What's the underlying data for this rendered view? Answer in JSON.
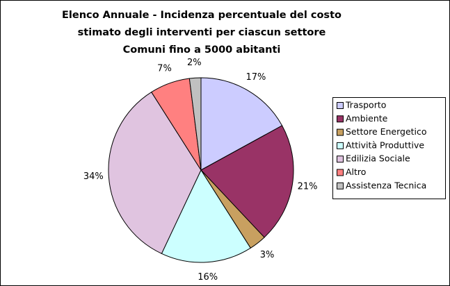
{
  "chart_data": {
    "type": "pie",
    "title": [
      "Elenco Annuale - Incidenza percentuale del costo",
      "stimato degli interventi per ciascun settore",
      "Comuni fino a 5000 abitanti"
    ],
    "categories": [
      "Trasporto",
      "Ambiente",
      "Settore Energetico",
      "Attività Produttive",
      "Edilizia Sociale",
      "Altro",
      "Assistenza Tecnica"
    ],
    "values": [
      17,
      21,
      3,
      16,
      34,
      7,
      2
    ],
    "value_labels": [
      "17%",
      "21%",
      "3%",
      "16%",
      "34%",
      "7%",
      "2%"
    ],
    "colors": [
      "#ccccff",
      "#993366",
      "#c8a060",
      "#ccffff",
      "#e0c4e0",
      "#ff8080",
      "#c0c0c0"
    ],
    "legend": "right"
  }
}
